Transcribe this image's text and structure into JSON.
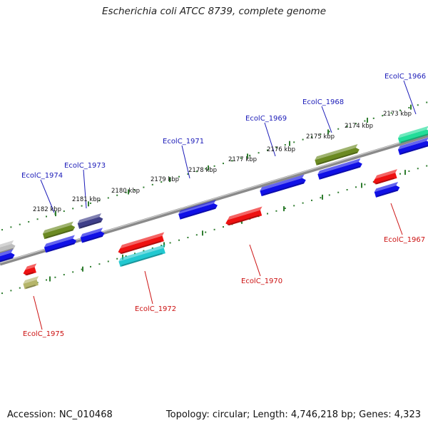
{
  "title": "Escherichia coli ATCC 8739, complete genome",
  "footer": {
    "accession": "Accession: NC_010468",
    "info": "Topology: circular; Length: 4,746,218 bp; Genes: 4,323"
  },
  "colors": {
    "axis": "#8a8a8a",
    "tick": "#2f7d2f",
    "plus_label": "#1a1ab8",
    "minus_label": "#cc1111",
    "blue": "#1010e6",
    "red": "#ee1111",
    "olive": "#6b8a22",
    "navy": "#3f3f88",
    "cyan": "#22c8d0",
    "khaki": "#b5b56a",
    "green": "#22dd99",
    "gray": "#bdbdbd"
  },
  "kbp_labels": [
    "2182 kbp",
    "2181 kbp",
    "2180 kbp",
    "2179 kbp",
    "2178 kbp",
    "2177 kbp",
    "2176 kbp",
    "2175 kbp",
    "2174 kbp",
    "2173 kbp"
  ],
  "gene_labels": [
    {
      "id": "g1974",
      "text": "EcolC_1974",
      "strand": "plus"
    },
    {
      "id": "g1973",
      "text": "EcolC_1973",
      "strand": "plus"
    },
    {
      "id": "g1971",
      "text": "EcolC_1971",
      "strand": "plus"
    },
    {
      "id": "g1969",
      "text": "EcolC_1969",
      "strand": "plus"
    },
    {
      "id": "g1968",
      "text": "EcolC_1968",
      "strand": "plus"
    },
    {
      "id": "g1966",
      "text": "EcolC_1966",
      "strand": "plus"
    },
    {
      "id": "g1975",
      "text": "EcolC_1975",
      "strand": "minus"
    },
    {
      "id": "g1972",
      "text": "EcolC_1972",
      "strand": "minus"
    },
    {
      "id": "g1970",
      "text": "EcolC_1970",
      "strand": "minus"
    },
    {
      "id": "g1967",
      "text": "EcolC_1967",
      "strand": "minus"
    }
  ]
}
